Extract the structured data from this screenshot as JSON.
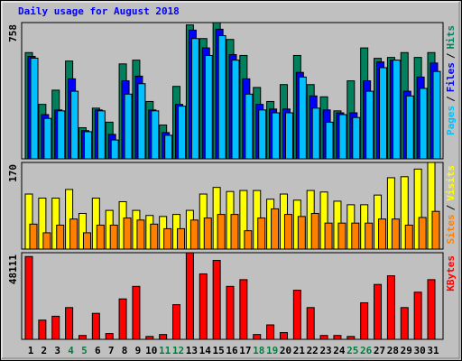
{
  "chart_data": {
    "type": "bar",
    "title": "Daily usage for August 2018",
    "categories": [
      "1",
      "2",
      "3",
      "4",
      "5",
      "6",
      "7",
      "8",
      "9",
      "10",
      "11",
      "12",
      "13",
      "14",
      "15",
      "16",
      "17",
      "18",
      "19",
      "20",
      "21",
      "22",
      "23",
      "24",
      "25",
      "26",
      "27",
      "28",
      "29",
      "30",
      "31"
    ],
    "label_colors": [
      "#000000",
      "#000000",
      "#000000",
      "#008040",
      "#008040",
      "#000000",
      "#000000",
      "#000000",
      "#000000",
      "#000000",
      "#008040",
      "#008040",
      "#000000",
      "#000000",
      "#000000",
      "#000000",
      "#000000",
      "#008040",
      "#008040",
      "#000000",
      "#000000",
      "#000000",
      "#000000",
      "#000000",
      "#008040",
      "#008040",
      "#000000",
      "#000000",
      "#000000",
      "#000000",
      "#000000"
    ],
    "legend_separator": "/",
    "panels": [
      {
        "ylim": [
          0,
          758
        ],
        "yticks": [
          758
        ],
        "series": [
          {
            "name": "Pages",
            "color": "#00c0ff",
            "values": [
              560,
              225,
              267,
              376,
              151,
              267,
              105,
              360,
              418,
              267,
              131,
              293,
              669,
              575,
              685,
              549,
              360,
              272,
              256,
              256,
              455,
              282,
              204,
              246,
              230,
              376,
              507,
              549,
              350,
              392,
              486
            ]
          },
          {
            "name": "Files",
            "color": "#0000ff",
            "values": [
              570,
              246,
              272,
              445,
              157,
              272,
              136,
              434,
              460,
              272,
              146,
              303,
              716,
              617,
              721,
              580,
              445,
              303,
              277,
              277,
              481,
              350,
              272,
              256,
              256,
              434,
              539,
              549,
              376,
              455,
              533
            ]
          },
          {
            "name": "Hits",
            "color": "#00805c",
            "values": [
              591,
              303,
              382,
              544,
              173,
              282,
              204,
              528,
              549,
              319,
              188,
              403,
              745,
              669,
              758,
              664,
              575,
              397,
              319,
              413,
              575,
              413,
              345,
              267,
              434,
              617,
              559,
              564,
              591,
              564,
              591
            ]
          }
        ]
      },
      {
        "ylim": [
          0,
          170
        ],
        "yticks": [
          170
        ],
        "series": [
          {
            "name": "Sites",
            "color": "#ff8000",
            "values": [
              49,
              32,
              47,
              59,
              32,
              47,
              47,
              61,
              57,
              49,
              40,
              40,
              57,
              61,
              68,
              68,
              36,
              61,
              79,
              68,
              64,
              70,
              51,
              51,
              51,
              51,
              59,
              59,
              47,
              62,
              74
            ]
          },
          {
            "name": "Visits",
            "color": "#ffff00",
            "values": [
              108,
              100,
              100,
              117,
              70,
              100,
              76,
              93,
              76,
              66,
              64,
              68,
              76,
              108,
              121,
              113,
              115,
              115,
              98,
              108,
              96,
              115,
              112,
              94,
              87,
              87,
              106,
              140,
              142,
              157,
              170
            ]
          }
        ]
      },
      {
        "ylim": [
          0,
          48111
        ],
        "yticks": [
          48111
        ],
        "series": [
          {
            "name": "KBytes",
            "color": "#ff0000",
            "values": [
              45976,
              10692,
              12830,
              17641,
              2138,
              14434,
              3207,
              22452,
              29401,
              1604,
              2673,
              19245,
              48111,
              36352,
              43837,
              29401,
              33142,
              2673,
              8019,
              3742,
              27262,
              17641,
              2138,
              2138,
              1604,
              20314,
              30471,
              35283,
              17641,
              26193,
              33142
            ]
          }
        ]
      }
    ]
  }
}
